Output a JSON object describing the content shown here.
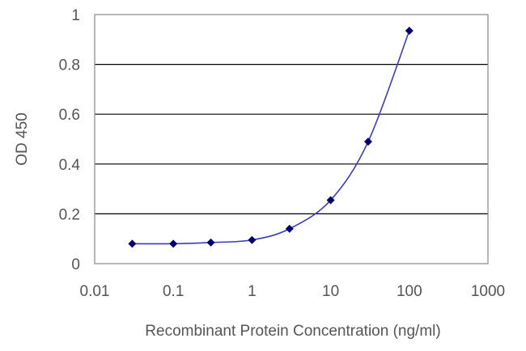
{
  "chart_data": {
    "type": "line",
    "title": "",
    "xlabel": "Recombinant Protein Concentration (ng/ml)",
    "ylabel": "OD 450",
    "x_scale": "log",
    "xlim": [
      0.01,
      1000
    ],
    "ylim": [
      0,
      1
    ],
    "x_ticks": [
      0.01,
      0.1,
      1,
      10,
      100,
      1000
    ],
    "x_tick_labels": [
      "0.01",
      "0.1",
      "1",
      "10",
      "100",
      "1000"
    ],
    "y_ticks": [
      0,
      0.2,
      0.4,
      0.6,
      0.8,
      1
    ],
    "y_tick_labels": [
      "0",
      "0.2",
      "0.4",
      "0.6",
      "0.8",
      "1"
    ],
    "grid": "horizontal",
    "legend": "none",
    "series": [
      {
        "x": [
          0.03,
          0.1,
          0.3,
          1,
          3,
          10,
          30,
          100
        ],
        "y": [
          0.08,
          0.08,
          0.085,
          0.095,
          0.14,
          0.255,
          0.49,
          0.935
        ]
      }
    ],
    "colors": {
      "line": "#3b3bc4",
      "marker": "#00006e",
      "grid": "#000000",
      "frame": "#888888",
      "text": "#555555"
    }
  }
}
